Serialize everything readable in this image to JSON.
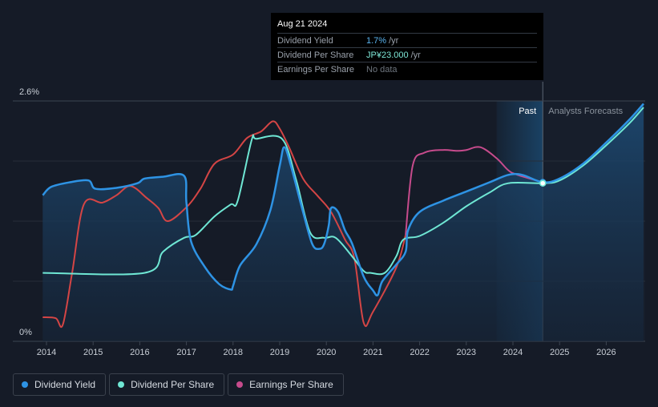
{
  "tooltip": {
    "date": "Aug 21 2024",
    "rows": [
      {
        "label": "Dividend Yield",
        "value": "1.7%",
        "unit": "/yr"
      },
      {
        "label": "Dividend Per Share",
        "value": "JP¥23.000",
        "unit": "/yr"
      },
      {
        "label": "Earnings Per Share",
        "value": "No data",
        "unit": ""
      }
    ]
  },
  "legend": [
    {
      "label": "Dividend Yield",
      "color": "#2e93e4"
    },
    {
      "label": "Dividend Per Share",
      "color": "#6fe7d4"
    },
    {
      "label": "Earnings Per Share",
      "color": "#c64b8c"
    }
  ],
  "regions": {
    "past": "Past",
    "forecast": "Analysts Forecasts"
  },
  "chart_data": {
    "type": "line",
    "y_axis_labels": [
      "2.6%",
      "0%"
    ],
    "ylim": [
      0,
      2.6
    ],
    "xlim": [
      2013.85,
      2026.8
    ],
    "x_ticks": [
      2014,
      2015,
      2016,
      2017,
      2018,
      2019,
      2020,
      2021,
      2022,
      2023,
      2024,
      2025,
      2026
    ],
    "past_forecast_boundary": 2024.64,
    "forecast_shade_start": 2023.65,
    "grid": true,
    "legend_position": "bottom-left",
    "series": [
      {
        "name": "Dividend Yield",
        "color": "#2e93e4",
        "filled": true,
        "points": [
          [
            2013.92,
            1.58
          ],
          [
            2014.1,
            1.67
          ],
          [
            2014.5,
            1.72
          ],
          [
            2014.9,
            1.74
          ],
          [
            2015.05,
            1.65
          ],
          [
            2015.5,
            1.66
          ],
          [
            2015.95,
            1.71
          ],
          [
            2016.1,
            1.76
          ],
          [
            2016.5,
            1.78
          ],
          [
            2016.95,
            1.79
          ],
          [
            2017.0,
            1.5
          ],
          [
            2017.1,
            1.08
          ],
          [
            2017.4,
            0.8
          ],
          [
            2017.7,
            0.62
          ],
          [
            2017.95,
            0.56
          ],
          [
            2018.0,
            0.6
          ],
          [
            2018.15,
            0.82
          ],
          [
            2018.5,
            1.05
          ],
          [
            2018.8,
            1.42
          ],
          [
            2019.0,
            1.9
          ],
          [
            2019.1,
            2.1
          ],
          [
            2019.25,
            1.88
          ],
          [
            2019.5,
            1.4
          ],
          [
            2019.7,
            1.05
          ],
          [
            2019.85,
            1.0
          ],
          [
            2019.95,
            1.05
          ],
          [
            2020.05,
            1.25
          ],
          [
            2020.1,
            1.44
          ],
          [
            2020.25,
            1.4
          ],
          [
            2020.4,
            1.2
          ],
          [
            2020.55,
            1.06
          ],
          [
            2020.8,
            0.7
          ],
          [
            2021.0,
            0.55
          ],
          [
            2021.1,
            0.5
          ],
          [
            2021.2,
            0.65
          ],
          [
            2021.5,
            0.83
          ],
          [
            2021.7,
            0.97
          ],
          [
            2021.75,
            1.2
          ],
          [
            2022.0,
            1.4
          ],
          [
            2022.5,
            1.52
          ],
          [
            2023.0,
            1.62
          ],
          [
            2023.5,
            1.72
          ],
          [
            2023.9,
            1.8
          ],
          [
            2024.2,
            1.8
          ],
          [
            2024.64,
            1.72
          ],
          [
            2025.0,
            1.76
          ],
          [
            2025.5,
            1.92
          ],
          [
            2026.0,
            2.15
          ],
          [
            2026.5,
            2.4
          ],
          [
            2026.8,
            2.57
          ]
        ]
      },
      {
        "name": "Dividend Per Share",
        "color": "#6fe7d4",
        "points": [
          [
            2013.92,
            0.74
          ],
          [
            2016.1,
            0.74
          ],
          [
            2016.5,
            0.97
          ],
          [
            2016.95,
            1.12
          ],
          [
            2017.2,
            1.15
          ],
          [
            2017.6,
            1.35
          ],
          [
            2017.95,
            1.48
          ],
          [
            2018.1,
            1.52
          ],
          [
            2018.4,
            2.18
          ],
          [
            2018.5,
            2.19
          ],
          [
            2019.05,
            2.19
          ],
          [
            2019.35,
            1.75
          ],
          [
            2019.65,
            1.18
          ],
          [
            2019.95,
            1.12
          ],
          [
            2020.2,
            1.12
          ],
          [
            2020.55,
            0.92
          ],
          [
            2020.8,
            0.76
          ],
          [
            2020.95,
            0.74
          ],
          [
            2021.25,
            0.74
          ],
          [
            2021.5,
            0.92
          ],
          [
            2021.65,
            1.1
          ],
          [
            2022.0,
            1.14
          ],
          [
            2022.5,
            1.28
          ],
          [
            2023.0,
            1.46
          ],
          [
            2023.5,
            1.61
          ],
          [
            2023.9,
            1.71
          ],
          [
            2024.64,
            1.71
          ],
          [
            2025.0,
            1.74
          ],
          [
            2025.5,
            1.9
          ],
          [
            2026.0,
            2.12
          ],
          [
            2026.5,
            2.36
          ],
          [
            2026.8,
            2.53
          ]
        ]
      },
      {
        "name": "Earnings Per Share",
        "color": "#c64b8c",
        "past_color": "#d44545",
        "points": [
          [
            2013.92,
            0.26
          ],
          [
            2014.2,
            0.25
          ],
          [
            2014.35,
            0.18
          ],
          [
            2014.55,
            0.74
          ],
          [
            2014.8,
            1.48
          ],
          [
            2015.2,
            1.5
          ],
          [
            2015.5,
            1.58
          ],
          [
            2015.8,
            1.68
          ],
          [
            2016.15,
            1.55
          ],
          [
            2016.4,
            1.44
          ],
          [
            2016.6,
            1.3
          ],
          [
            2017.0,
            1.45
          ],
          [
            2017.3,
            1.65
          ],
          [
            2017.6,
            1.92
          ],
          [
            2018.0,
            2.02
          ],
          [
            2018.3,
            2.2
          ],
          [
            2018.6,
            2.27
          ],
          [
            2018.85,
            2.38
          ],
          [
            2019.0,
            2.3
          ],
          [
            2019.2,
            2.1
          ],
          [
            2019.5,
            1.76
          ],
          [
            2019.8,
            1.58
          ],
          [
            2020.1,
            1.4
          ],
          [
            2020.4,
            1.1
          ],
          [
            2020.6,
            0.9
          ],
          [
            2020.8,
            0.2
          ],
          [
            2021.0,
            0.32
          ],
          [
            2021.5,
            0.8
          ],
          [
            2021.7,
            1.15
          ],
          [
            2021.85,
            1.9
          ],
          [
            2022.1,
            2.04
          ],
          [
            2022.5,
            2.07
          ],
          [
            2022.8,
            2.06
          ],
          [
            2023.0,
            2.07
          ],
          [
            2023.3,
            2.1
          ],
          [
            2023.65,
            1.98
          ],
          [
            2023.9,
            1.85
          ],
          [
            2024.1,
            1.8
          ],
          [
            2024.64,
            1.72
          ]
        ]
      }
    ]
  }
}
